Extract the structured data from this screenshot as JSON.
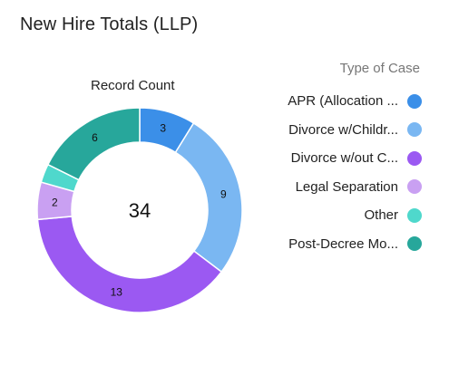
{
  "card": {
    "title": "New Hire Totals (LLP)"
  },
  "chart_data": {
    "type": "pie",
    "title": "Record Count",
    "total_label": "34",
    "legend_title": "Type of Case",
    "legend_position": "right",
    "slices": [
      {
        "label": "APR (Allocation ...",
        "value": 3,
        "color": "#3b8fe8"
      },
      {
        "label": "Divorce w/Childr...",
        "value": 9,
        "color": "#7ab7f2"
      },
      {
        "label": "Divorce w/out C...",
        "value": 13,
        "color": "#9b59f2"
      },
      {
        "label": "Legal Separation",
        "value": 2,
        "color": "#c9a0f2"
      },
      {
        "label": "Other",
        "value": 1,
        "color": "#4fd8cc"
      },
      {
        "label": "Post-Decree Mo...",
        "value": 6,
        "color": "#27a79b"
      }
    ]
  }
}
